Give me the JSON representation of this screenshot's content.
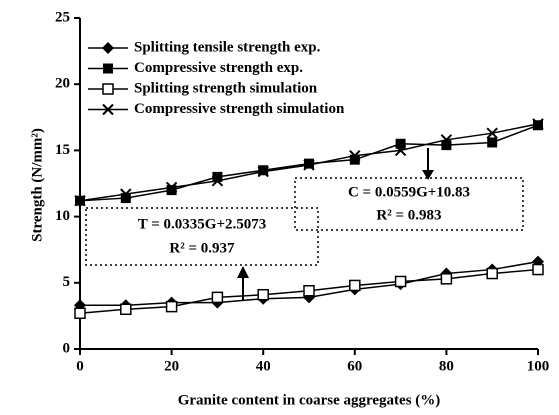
{
  "chart_data": {
    "type": "line",
    "x_label": "Granite content in coarse aggregates (%)",
    "y_label": "Strength (N/mm²)",
    "x": [
      0,
      10,
      20,
      30,
      40,
      50,
      60,
      70,
      80,
      90,
      100
    ],
    "series": [
      {
        "name": "Splitting tensile strength exp.",
        "color": "#000000",
        "marker": "diamond",
        "values": [
          3.3,
          3.3,
          3.5,
          3.5,
          3.8,
          3.9,
          4.5,
          4.9,
          5.7,
          6.0,
          6.6
        ]
      },
      {
        "name": "Compressive strength exp.",
        "color": "#000000",
        "marker": "square",
        "values": [
          11.2,
          11.4,
          12.0,
          13.0,
          13.5,
          14.0,
          14.3,
          15.5,
          15.4,
          15.6,
          16.9
        ]
      },
      {
        "name": "Splitting strength simulation",
        "color": "#000000",
        "marker": "open-square",
        "values": [
          2.7,
          3.0,
          3.2,
          3.9,
          4.1,
          4.4,
          4.8,
          5.1,
          5.3,
          5.7,
          6.0
        ]
      },
      {
        "name": "Compressive strength simulation",
        "color": "#000000",
        "marker": "cross",
        "values": [
          11.2,
          11.7,
          12.2,
          12.7,
          13.4,
          13.9,
          14.6,
          15.0,
          15.8,
          16.3,
          17.0
        ]
      }
    ],
    "annotations": [
      {
        "lines": [
          "C = 0.0559G+10.83",
          "R² = 0.983"
        ]
      },
      {
        "lines": [
          "T = 0.0335G+2.5073",
          "R² = 0.937"
        ]
      }
    ],
    "xlim": [
      0,
      100
    ],
    "xticks": [
      0,
      20,
      40,
      60,
      80,
      100
    ],
    "ylim": [
      0,
      25
    ],
    "yticks": [
      0,
      5,
      10,
      15,
      20,
      25
    ],
    "grid": false,
    "legend": "upper left"
  }
}
